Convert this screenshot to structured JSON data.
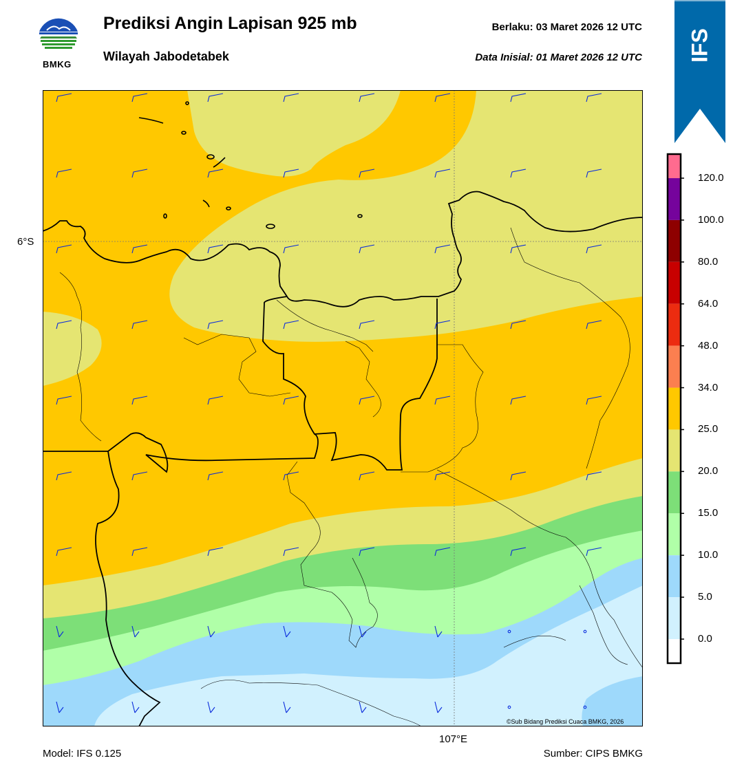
{
  "header": {
    "title": "Prediksi Angin Lapisan 925 mb",
    "subtitle": "Wilayah Jabodetabek",
    "valid": "Berlaku:  03 Maret 2026 12 UTC",
    "init": "Data Inisial:  01 Maret 2026 12 UTC",
    "logo_text": "BMKG"
  },
  "ribbon": {
    "label": "IFS",
    "color": "#0069aa"
  },
  "map": {
    "lat_label": "6°S",
    "lon_label": "107°E",
    "copyright": "©Sub Bidang Prediksi Cuaca BMKG, 2026"
  },
  "colorbar": {
    "labels": [
      "120.0",
      "100.0",
      "80.0",
      "64.0",
      "48.0",
      "34.0",
      "25.0",
      "20.0",
      "15.0",
      "10.0",
      "5.0",
      "0.0"
    ],
    "colors": [
      "#ff6b8f",
      "#75039c",
      "#8e0000",
      "#c80000",
      "#ec2c10",
      "#fb7f50",
      "#ffc800",
      "#e5e572",
      "#7ddf78",
      "#b0ffa8",
      "#9ed9fb",
      "#d1f1fe",
      "#ffffff"
    ]
  },
  "footer": {
    "model": "Model: IFS 0.125",
    "source": "Sumber: CIPS BMKG"
  }
}
